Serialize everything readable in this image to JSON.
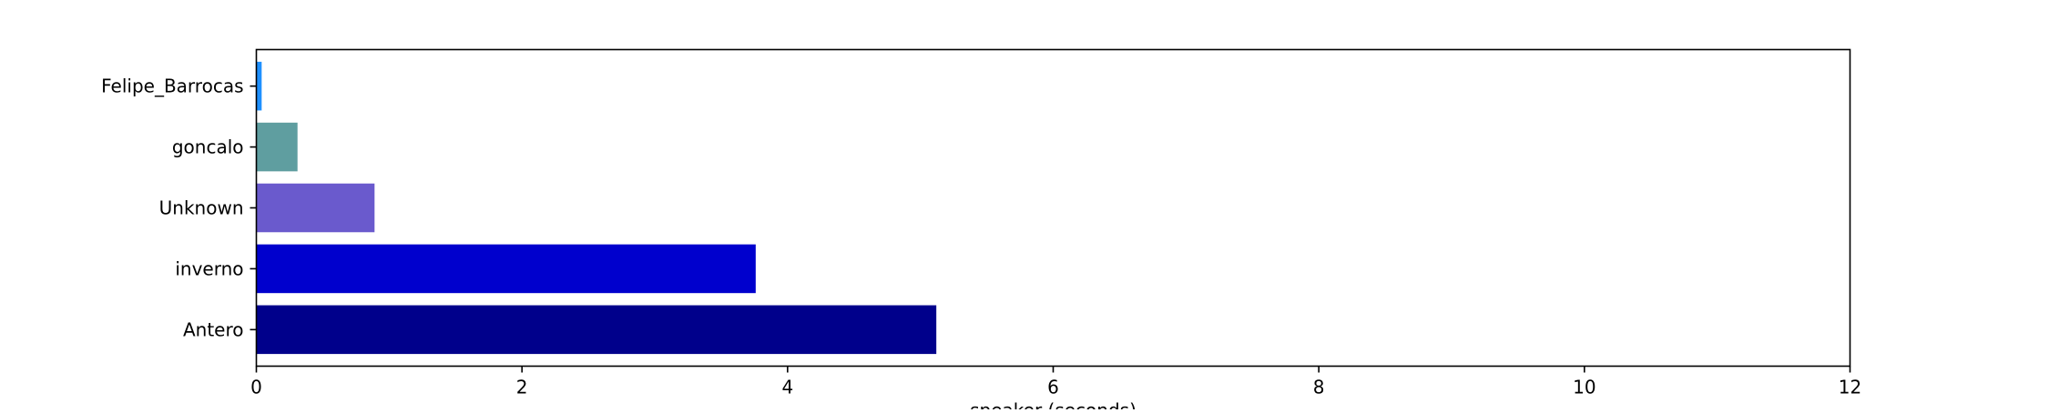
{
  "chart_data": {
    "type": "bar",
    "orientation": "horizontal",
    "categories": [
      "Antero",
      "inverno",
      "Unknown",
      "goncalo",
      "Felipe_Barrocas"
    ],
    "values": [
      5.12,
      3.76,
      0.89,
      0.31,
      0.04
    ],
    "colors": [
      "#00008b",
      "#0000cd",
      "#6a5acd",
      "#5f9ea0",
      "#1e90ff"
    ],
    "title": "",
    "xlabel": "speaker (seconds)",
    "ylabel": "",
    "xlim": [
      0,
      12
    ],
    "xticks": [
      0,
      2,
      4,
      6,
      8,
      10,
      12
    ],
    "grid": false,
    "legend": "none"
  }
}
